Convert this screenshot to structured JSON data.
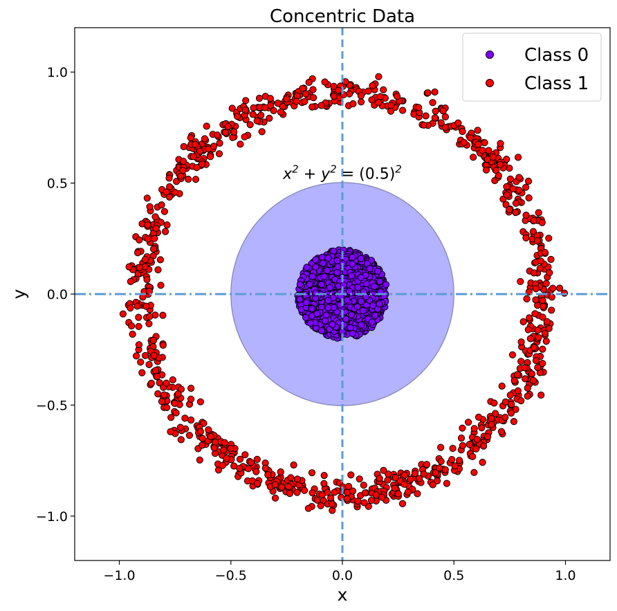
{
  "chart_data": {
    "type": "scatter",
    "title": "Concentric Data",
    "xlabel": "x",
    "ylabel": "y",
    "xlim": [
      -1.2,
      1.2
    ],
    "ylim": [
      -1.2,
      1.2
    ],
    "xticks": [
      -1.0,
      -0.5,
      0.0,
      0.5,
      1.0
    ],
    "yticks": [
      -1.0,
      -0.5,
      0.0,
      0.5,
      1.0
    ],
    "xtick_labels": [
      "−1.0",
      "−0.5",
      "0.0",
      "0.5",
      "1.0"
    ],
    "ytick_labels": [
      "−1.0",
      "−0.5",
      "0.0",
      "0.5",
      "1.0"
    ],
    "grid": false,
    "legend_position": "top-right",
    "series": [
      {
        "name": "Class 0",
        "color": "#7f00ff",
        "shape": "filled disc",
        "center": [
          0.0,
          0.0
        ],
        "radius_max": 0.2,
        "approx_points": 1000
      },
      {
        "name": "Class 1",
        "color": "#ff0000",
        "shape": "ring",
        "center": [
          0.0,
          0.0
        ],
        "radius_mean": 0.9,
        "radius_spread": [
          0.8,
          1.0
        ],
        "approx_points": 1000
      }
    ],
    "annotations": [
      {
        "type": "circle",
        "center": [
          0.0,
          0.0
        ],
        "radius": 0.5,
        "fill": "#b3b3ff",
        "label_tex": [
          "x",
          "2",
          " + ",
          "y",
          "2",
          " = (0.5)",
          "2"
        ],
        "label_anchor": [
          0.0,
          0.5
        ]
      },
      {
        "type": "hline",
        "y": 0.0,
        "style": "dash-dot",
        "color": "#5b9bd5"
      },
      {
        "type": "vline",
        "x": 0.0,
        "style": "dashed",
        "color": "#5b9bd5"
      }
    ]
  }
}
